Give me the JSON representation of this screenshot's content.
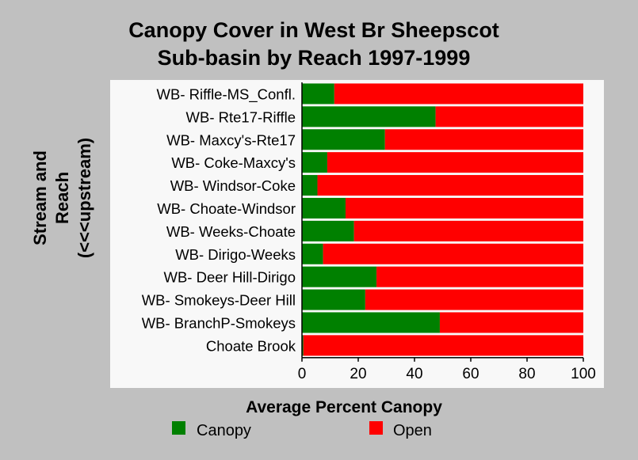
{
  "chart_data": {
    "type": "bar",
    "orientation": "horizontal",
    "stacked": true,
    "title": "Canopy Cover in West Br Sheepscot Sub-basin by Reach 1997-1999",
    "title_lines": [
      "Canopy Cover in West Br Sheepscot",
      "Sub-basin by Reach 1997-1999"
    ],
    "xlabel": "Average Percent Canopy",
    "ylabel": "Stream and Reach (<<<upstream)",
    "ylabel_lines": [
      "Stream and",
      "Reach",
      "(<<<upstream)"
    ],
    "xlim": [
      0,
      100
    ],
    "xticks": [
      0,
      20,
      40,
      60,
      80,
      100
    ],
    "grid": false,
    "legend_position": "bottom",
    "categories": [
      "WB- Riffle-MS_Confl.",
      "WB- Rte17-Riffle",
      "WB- Maxcy's-Rte17",
      "WB- Coke-Maxcy's",
      "WB- Windsor-Coke",
      "WB- Choate-Windsor",
      "WB- Weeks-Choate",
      "WB- Dirigo-Weeks",
      "WB- Deer Hill-Dirigo",
      "WB- Smokeys-Deer Hill",
      "WB- BranchP-Smokeys",
      "Choate Brook"
    ],
    "series": [
      {
        "name": "Canopy",
        "color": "#008000",
        "values": [
          11.5,
          47.5,
          29.5,
          9,
          5.5,
          15.5,
          18.5,
          7.5,
          26.5,
          22.5,
          49,
          0.5
        ]
      },
      {
        "name": "Open",
        "color": "#ff0000",
        "values": [
          88.5,
          52.5,
          70.5,
          91,
          94.5,
          84.5,
          81.5,
          92.5,
          73.5,
          77.5,
          51,
          99.5
        ]
      }
    ]
  },
  "colors": {
    "page_background": "#c0c0c0",
    "plot_background": "#f8f8f8",
    "canopy": "#008000",
    "open": "#ff0000"
  }
}
